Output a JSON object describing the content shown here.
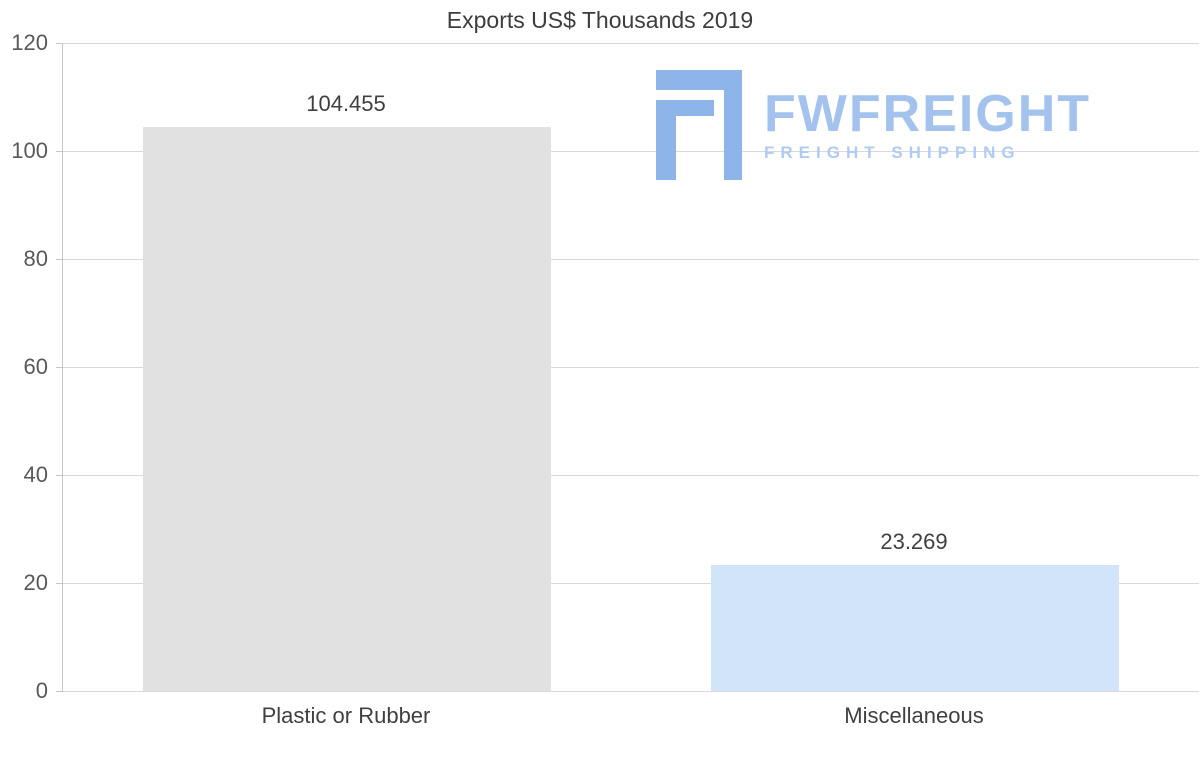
{
  "chart_data": {
    "type": "bar",
    "title": "Exports US$ Thousands 2019",
    "categories": [
      "Plastic or Rubber",
      "Miscellaneous"
    ],
    "values": [
      104.455,
      23.269
    ],
    "value_labels": [
      "104.455",
      "23.269"
    ],
    "bar_colors": [
      "#e1e1e1",
      "#d2e4f9"
    ],
    "ylim": [
      0,
      120
    ],
    "y_ticks": [
      0,
      20,
      40,
      60,
      80,
      100,
      120
    ],
    "grid": true,
    "legend": false,
    "xlabel": "",
    "ylabel": ""
  },
  "watermark": {
    "brand": "FWFREIGHT",
    "tagline": "FREIGHT SHIPPING",
    "logo_color": "#8db5e9"
  },
  "colors": {
    "title_text": "#3d3d3d",
    "tick_text": "#595959",
    "gridline": "#d9d9d9",
    "axis_line": "#c6c6c6",
    "background": "#ffffff"
  }
}
